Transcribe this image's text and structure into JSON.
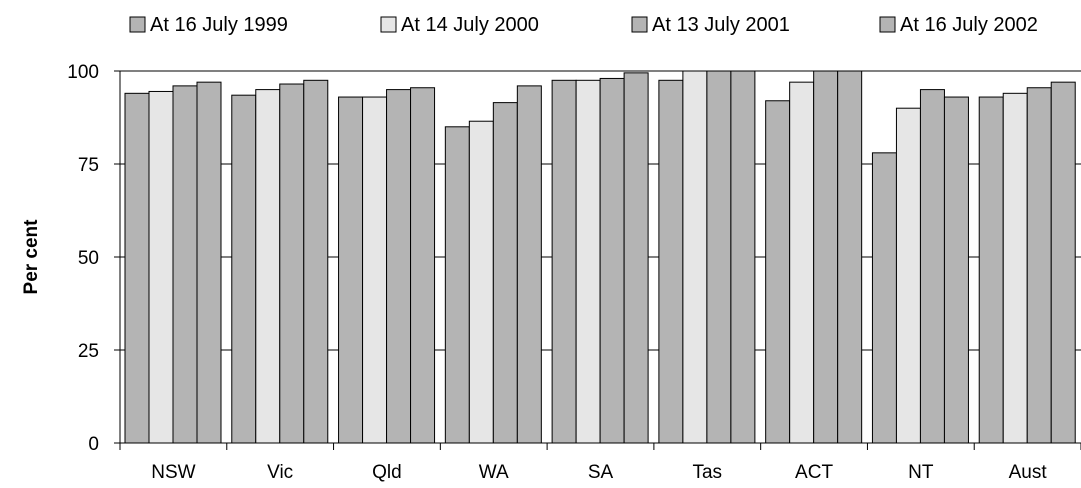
{
  "chart_data": {
    "type": "bar",
    "title": "",
    "xlabel": "",
    "ylabel": "Per cent",
    "ylim": [
      0,
      100
    ],
    "yticks": [
      0,
      25,
      50,
      75,
      100
    ],
    "grid": true,
    "legend_position": "top",
    "categories": [
      "NSW",
      "Vic",
      "Qld",
      "WA",
      "SA",
      "Tas",
      "ACT",
      "NT",
      "Aust"
    ],
    "series": [
      {
        "name": "At 16 July 1999",
        "color": "#b4b4b4",
        "values": [
          94.0,
          93.5,
          93.0,
          85.0,
          97.5,
          97.5,
          92.0,
          78.0,
          93.0
        ]
      },
      {
        "name": "At 14 July 2000",
        "color": "#e6e6e6",
        "values": [
          94.5,
          95.0,
          93.0,
          86.5,
          97.5,
          100.0,
          97.0,
          90.0,
          94.0
        ]
      },
      {
        "name": "At 13 July 2001",
        "color": "#b4b4b4",
        "values": [
          96.0,
          96.5,
          95.0,
          91.5,
          98.0,
          100.0,
          100.0,
          95.0,
          95.5
        ]
      },
      {
        "name": "At 16 July 2002",
        "color": "#b4b4b4",
        "values": [
          97.0,
          97.5,
          95.5,
          96.0,
          99.5,
          100.0,
          100.0,
          93.0,
          97.0
        ]
      }
    ]
  }
}
